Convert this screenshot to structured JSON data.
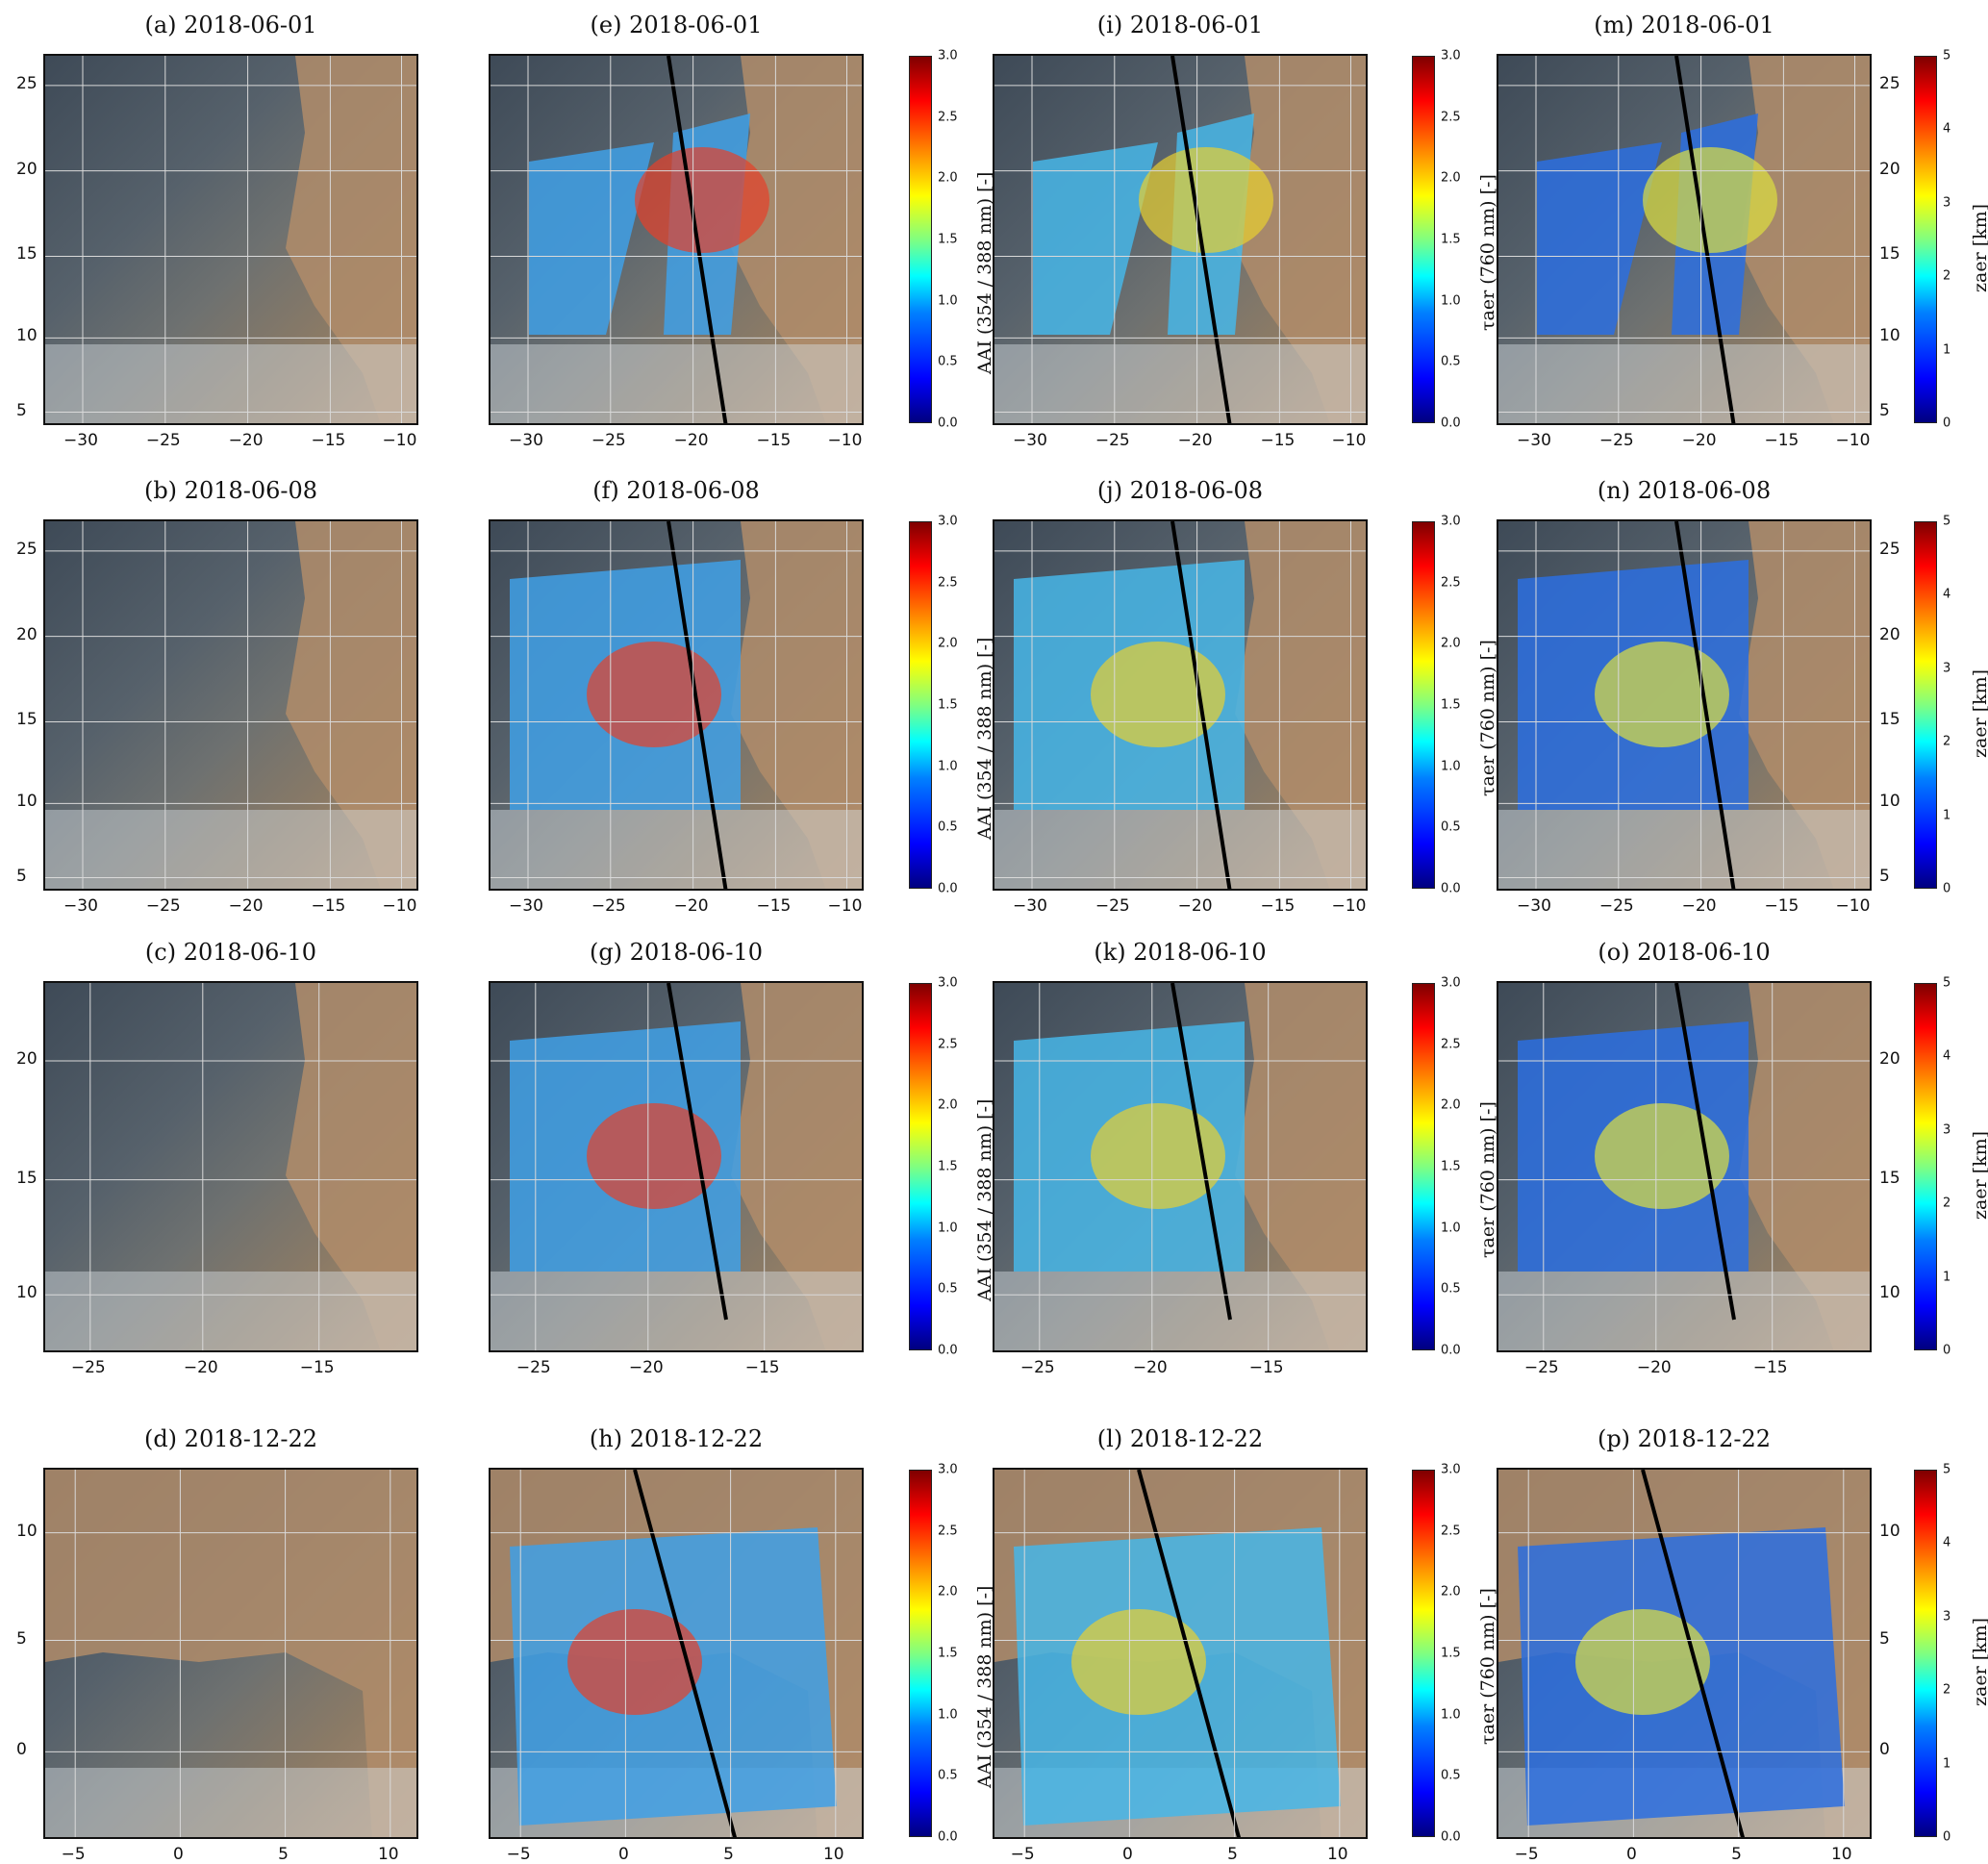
{
  "columns": [
    {
      "colorbar": null
    },
    {
      "colorbar": {
        "label": "AAI (354 / 388 nm) [-]",
        "ticks": [
          "0.0",
          "0.5",
          "1.0",
          "1.5",
          "2.0",
          "2.5",
          "3.0"
        ]
      }
    },
    {
      "colorbar": {
        "label": "τaer (760 nm) [-]",
        "ticks": [
          "0.0",
          "0.5",
          "1.0",
          "1.5",
          "2.0",
          "2.5",
          "3.0"
        ]
      }
    },
    {
      "colorbar": {
        "label": "zaer [km]",
        "ticks": [
          "0",
          "1",
          "2",
          "3",
          "4",
          "5"
        ]
      }
    }
  ],
  "rows": [
    {
      "titles": [
        "(a) 2018-06-01",
        "(e) 2018-06-01",
        "(i) 2018-06-01",
        "(m) 2018-06-01"
      ],
      "xticks": [
        "−30",
        "−25",
        "−20",
        "−15",
        "−10"
      ],
      "yticks": [
        "5",
        "10",
        "15",
        "20",
        "25"
      ]
    },
    {
      "titles": [
        "(b) 2018-06-08",
        "(f) 2018-06-08",
        "(j) 2018-06-08",
        "(n) 2018-06-08"
      ],
      "xticks": [
        "−30",
        "−25",
        "−20",
        "−15",
        "−10"
      ],
      "yticks": [
        "5",
        "10",
        "15",
        "20",
        "25"
      ]
    },
    {
      "titles": [
        "(c) 2018-06-10",
        "(g) 2018-06-10",
        "(k) 2018-06-10",
        "(o) 2018-06-10"
      ],
      "xticks": [
        "−25",
        "−20",
        "−15"
      ],
      "yticks": [
        "10",
        "15",
        "20"
      ]
    },
    {
      "titles": [
        "(d) 2018-12-22",
        "(h) 2018-12-22",
        "(l) 2018-12-22",
        "(p) 2018-12-22"
      ],
      "xticks": [
        "−5",
        "0",
        "5",
        "10"
      ],
      "yticks": [
        "0",
        "5",
        "10"
      ]
    }
  ],
  "colors": {
    "ocean": "#3e4a57",
    "desert": "#b08c6a",
    "track": "#000000",
    "gap": "#8a8a8a"
  }
}
